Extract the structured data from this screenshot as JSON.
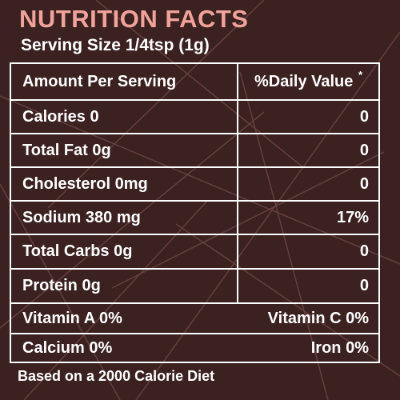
{
  "label": {
    "title": "NUTRITION FACTS",
    "serving_size": "Serving Size 1/4tsp (1g)",
    "header": {
      "left": "Amount Per Serving",
      "right": "%Daily Value",
      "asterisk": "*"
    },
    "rows": [
      {
        "name": "Calories 0",
        "value": "0"
      },
      {
        "name": "Total Fat 0g",
        "value": "0"
      },
      {
        "name": "Cholesterol 0mg",
        "value": "0"
      },
      {
        "name": "Sodium 380 mg",
        "value": "17%"
      },
      {
        "name": "Total Carbs 0g",
        "value": "0"
      },
      {
        "name": "Protein 0g",
        "value": "0"
      }
    ],
    "vitamins": [
      {
        "left": "Vitamin A 0%",
        "right": "Vitamin C 0%"
      },
      {
        "left": "Calcium 0%",
        "right": "Iron 0%"
      }
    ],
    "footer": "Based on a 2000 Calorie Diet"
  },
  "colors": {
    "background": "#3b2120",
    "title": "#f0a39b",
    "text": "#ffffff",
    "pattern_line": "#6e4846"
  }
}
